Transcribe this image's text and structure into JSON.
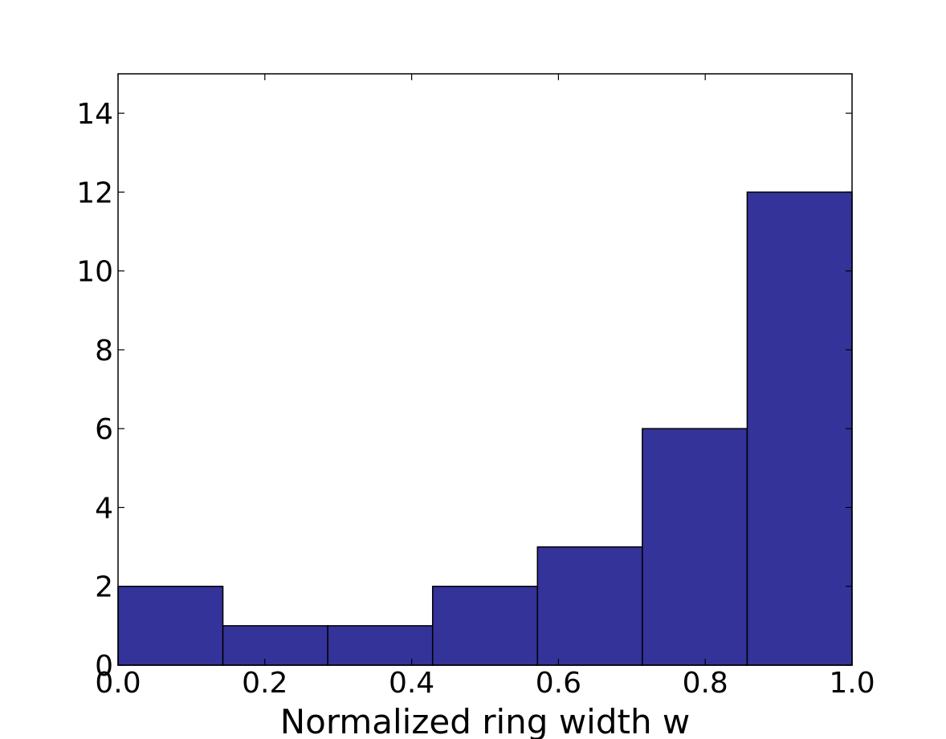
{
  "chart_data": {
    "type": "bar",
    "title": "",
    "xlabel": "Normalized ring width w",
    "ylabel": "",
    "bins": [
      {
        "x0": 0.0,
        "x1": 0.142857,
        "value": 2
      },
      {
        "x0": 0.142857,
        "x1": 0.285714,
        "value": 1
      },
      {
        "x0": 0.285714,
        "x1": 0.428571,
        "value": 1
      },
      {
        "x0": 0.428571,
        "x1": 0.571429,
        "value": 2
      },
      {
        "x0": 0.571429,
        "x1": 0.714286,
        "value": 3
      },
      {
        "x0": 0.714286,
        "x1": 0.857143,
        "value": 6
      },
      {
        "x0": 0.857143,
        "x1": 1.0,
        "value": 12
      }
    ],
    "xlim": [
      0.0,
      1.0
    ],
    "ylim": [
      0,
      15
    ],
    "xticks": [
      {
        "value": 0.0,
        "label": "0.0"
      },
      {
        "value": 0.2,
        "label": "0.2"
      },
      {
        "value": 0.4,
        "label": "0.4"
      },
      {
        "value": 0.6,
        "label": "0.6"
      },
      {
        "value": 0.8,
        "label": "0.8"
      },
      {
        "value": 1.0,
        "label": "1.0"
      }
    ],
    "yticks": [
      {
        "value": 0,
        "label": "0"
      },
      {
        "value": 2,
        "label": "2"
      },
      {
        "value": 4,
        "label": "4"
      },
      {
        "value": 6,
        "label": "6"
      },
      {
        "value": 8,
        "label": "8"
      },
      {
        "value": 10,
        "label": "10"
      },
      {
        "value": 12,
        "label": "12"
      },
      {
        "value": 14,
        "label": "14"
      }
    ],
    "grid": false,
    "bar_color": "#333399",
    "edge_color": "#000000"
  }
}
